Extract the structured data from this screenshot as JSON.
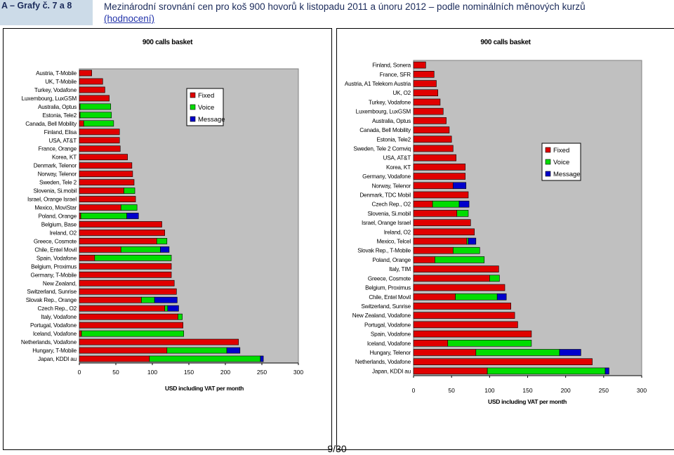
{
  "header": {
    "left_label": "A – Grafy č. 7 a 8",
    "title": "Mezinárodní srovnání cen pro koš 900 hovorů k listopadu 2011 a únoru 2012 – podle nominálních měnových kurzů",
    "link_text": "(hodnocení)"
  },
  "page_number": "9/30",
  "colors": {
    "Fixed": "#e00000",
    "Voice": "#00dd00",
    "Message": "#0000cc",
    "plot_bg": "#c0c0c0"
  },
  "chart_data": [
    {
      "type": "bar",
      "orientation": "horizontal",
      "stacked": true,
      "title": "900 calls basket",
      "xlabel": "USD including VAT per month",
      "xlim": [
        0,
        300
      ],
      "xticks": [
        0,
        50,
        100,
        150,
        200,
        250,
        300
      ],
      "legend": [
        "Fixed",
        "Voice",
        "Message"
      ],
      "legend_position": "top-right",
      "grid": false,
      "categories": [
        "Austria, T-Mobile",
        "UK, T-Mobile",
        "Turkey, Vodafone",
        "Luxembourg, LuxGSM",
        "Australia, Optus",
        "Estonia, Tele2",
        "Canada, Bell Mobility",
        "Finland, Elisa",
        "USA, AT&T",
        "France, Orange",
        "Korea, KT",
        "Denmark, Telenor",
        "Norway, Telenor",
        "Sweden, Tele 2",
        "Slovenia, Si.mobil",
        "Israel, Orange Israel",
        "Mexico, MoviStar",
        "Poland, Orange",
        "Belgium, Base",
        "Ireland, O2",
        "Greece, Cosmote",
        "Chile, Entel Movil",
        "Spain, Vodafone",
        "Belgium, Proximus",
        "Germany, T-Mobile",
        "New Zealand,",
        "Switzerland, Sunrise",
        "Slovak Rep., Orange",
        "Czech Rep., O2",
        "Italy, Vodafone",
        "Portugal, Vodafone",
        "Iceland, Vodafone",
        "Netherlands, Vodafone",
        "Hungary, T-Mobile",
        "Japan, KDDI au"
      ],
      "series": [
        {
          "name": "Fixed",
          "values": [
            17,
            32,
            35,
            41,
            1,
            1,
            6,
            55,
            55,
            56,
            66,
            72,
            73,
            75,
            61,
            77,
            57,
            2,
            113,
            117,
            106,
            57,
            21,
            126,
            126,
            130,
            133,
            85,
            117,
            135,
            142,
            3,
            218,
            120,
            96
          ]
        },
        {
          "name": "Voice",
          "values": [
            0,
            0,
            0,
            0,
            42,
            43,
            41,
            0,
            0,
            0,
            0,
            0,
            0,
            0,
            15,
            0,
            22,
            63,
            0,
            0,
            14,
            54,
            105,
            0,
            0,
            0,
            0,
            18,
            4,
            6,
            0,
            140,
            0,
            82,
            152
          ]
        },
        {
          "name": "Message",
          "values": [
            0,
            0,
            0,
            0,
            0,
            0,
            0,
            0,
            0,
            0,
            0,
            0,
            0,
            0,
            0,
            0,
            0,
            16,
            0,
            0,
            0,
            12,
            0,
            0,
            0,
            0,
            0,
            31,
            15,
            0,
            0,
            0,
            0,
            18,
            4
          ]
        }
      ]
    },
    {
      "type": "bar",
      "orientation": "horizontal",
      "stacked": true,
      "title": "900 calls basket",
      "xlabel": "USD including VAT per month",
      "xlim": [
        0,
        300
      ],
      "xticks": [
        0,
        50,
        100,
        150,
        200,
        250,
        300
      ],
      "legend": [
        "Fixed",
        "Voice",
        "Message"
      ],
      "legend_position": "right",
      "grid": false,
      "categories": [
        "Finland, Sonera",
        "France, SFR",
        "Austria, A1 Telekom Austria",
        "UK, O2",
        "Turkey, Vodafone",
        "Luxembourg, LuxGSM",
        "Australia, Optus",
        "Canada, Bell Mobility",
        "Estonia, Tele2",
        "Sweden, Tele 2 Comviq",
        "USA, AT&T",
        "Korea, KT",
        "Germany, Vodafone",
        "Norway, Telenor",
        "Denmark, TDC Mobil",
        "Czech Rep., O2",
        "Slovenia, Si.mobil",
        "Israel, Orange Israel",
        "Ireland, O2",
        "Mexico, Telcel",
        "Slovak Rep., T-Mobile",
        "Poland, Orange",
        "Italy, TIM",
        "Greece, Cosmote",
        "Belgium, Proximus",
        "Chile, Entel Movil",
        "Switzerland, Sunrise",
        "New Zealand, Vodafone",
        "Portugal, Vodafone",
        "Spain, Vodafone",
        "Iceland, Vodafone",
        "Hungary, Telenor",
        "Netherlands, Vodafone",
        "Japan, KDDI au"
      ],
      "series": [
        {
          "name": "Fixed",
          "values": [
            16,
            27,
            30,
            32,
            35,
            39,
            43,
            47,
            50,
            52,
            56,
            68,
            68,
            52,
            72,
            25,
            57,
            75,
            80,
            70,
            52,
            28,
            112,
            100,
            120,
            55,
            128,
            133,
            137,
            155,
            45,
            82,
            235,
            97
          ]
        },
        {
          "name": "Voice",
          "values": [
            0,
            0,
            0,
            0,
            0,
            0,
            0,
            0,
            0,
            0,
            0,
            0,
            0,
            0,
            0,
            35,
            15,
            0,
            0,
            2,
            35,
            65,
            0,
            13,
            0,
            55,
            0,
            0,
            0,
            0,
            110,
            110,
            0,
            155
          ]
        },
        {
          "name": "Message",
          "values": [
            0,
            0,
            0,
            0,
            0,
            0,
            0,
            0,
            0,
            0,
            0,
            0,
            0,
            17,
            0,
            13,
            0,
            0,
            0,
            10,
            0,
            0,
            0,
            0,
            0,
            12,
            0,
            0,
            0,
            0,
            0,
            28,
            0,
            5
          ]
        }
      ]
    }
  ]
}
